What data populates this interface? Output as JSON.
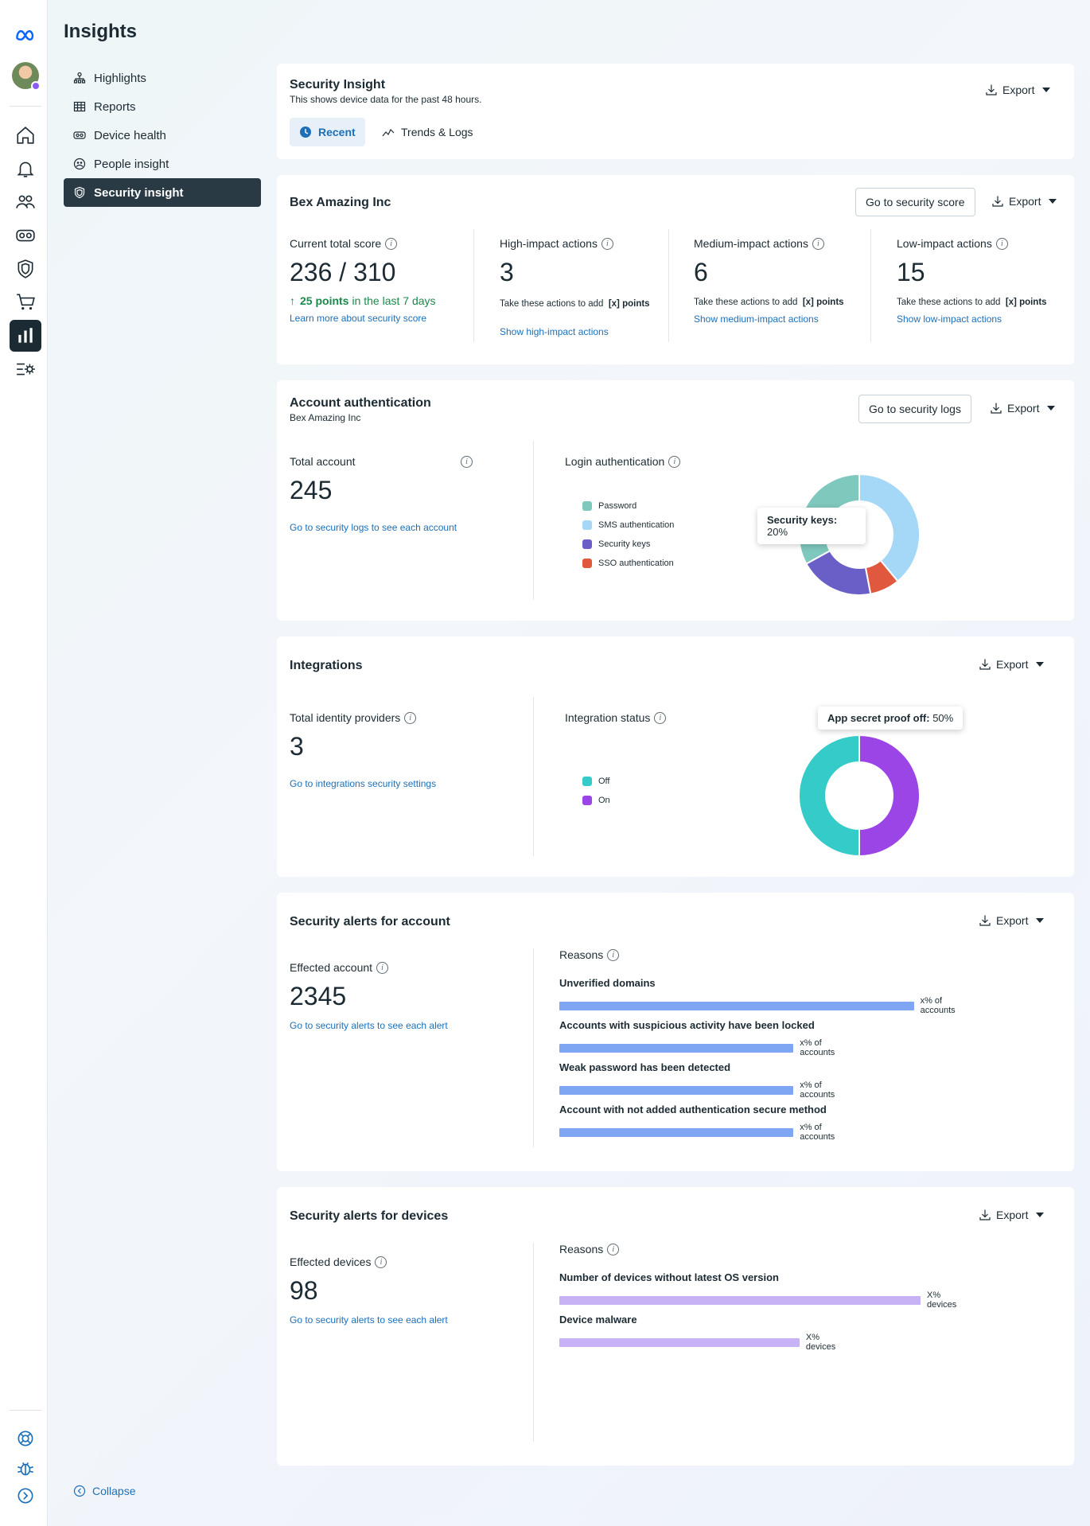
{
  "nav": {
    "title": "Insights",
    "items": [
      {
        "label": "Highlights",
        "icon": "sitemap-icon"
      },
      {
        "label": "Reports",
        "icon": "table-icon"
      },
      {
        "label": "Device health",
        "icon": "vr-headset-icon"
      },
      {
        "label": "People insight",
        "icon": "people-icon"
      },
      {
        "label": "Security insight",
        "icon": "shield-icon"
      }
    ],
    "collapse_label": "Collapse"
  },
  "header_card": {
    "title": "Security Insight",
    "subtitle": "This shows device data for the past 48 hours.",
    "export_label": "Export",
    "tabs": [
      {
        "label": "Recent",
        "icon": "clock-icon"
      },
      {
        "label": "Trends & Logs",
        "icon": "trend-icon"
      }
    ]
  },
  "score_card": {
    "title": "Bex Amazing Inc",
    "goto_label": "Go to security score",
    "export_label": "Export",
    "current": {
      "label": "Current total score",
      "value": "236 / 310",
      "delta_bold": "25 points",
      "delta_rest": "in the last 7 days",
      "link": "Learn more about security score"
    },
    "high": {
      "label": "High-impact actions",
      "value": "3",
      "desc_a": "Take these actions to add",
      "desc_b": "[x]",
      "desc_c": "points",
      "link": "Show high-impact actions"
    },
    "medium": {
      "label": "Medium-impact actions",
      "value": "6",
      "desc_a": "Take these actions to add",
      "desc_b": "[x] points",
      "link": "Show medium-impact actions"
    },
    "low": {
      "label": "Low-impact actions",
      "value": "15",
      "desc_a": "Take these actions to add",
      "desc_b": "[x] points",
      "link": "Show low-impact actions"
    }
  },
  "auth_card": {
    "title": "Account authentication",
    "subtitle": "Bex Amazing Inc",
    "goto_label": "Go to security logs",
    "export_label": "Export",
    "total_label": "Total account",
    "total_value": "245",
    "total_link": "Go to security logs to see each account",
    "login_label": "Login authentication",
    "legend": [
      {
        "label": "Password",
        "color": "#7ec8bd"
      },
      {
        "label": "SMS authentication",
        "color": "#a5d8f7"
      },
      {
        "label": "Security keys",
        "color": "#6a5fc7"
      },
      {
        "label": "SSO authentication",
        "color": "#e0593f"
      }
    ],
    "tooltip_label": "Security keys",
    "tooltip_value": "20%"
  },
  "integrations_card": {
    "title": "Integrations",
    "export_label": "Export",
    "total_label": "Total identity providers",
    "total_value": "3",
    "total_link": "Go to integrations security settings",
    "status_label": "Integration status",
    "legend": [
      {
        "label": "Off",
        "color": "#34cbc9"
      },
      {
        "label": "On",
        "color": "#9b45e6"
      }
    ],
    "tooltip_label": "App secret proof off",
    "tooltip_value": "50%"
  },
  "account_alerts_card": {
    "title": "Security alerts for account",
    "export_label": "Export",
    "affected_label": "Effected account",
    "affected_value": "2345",
    "affected_link": "Go to security alerts to see each alert",
    "reasons_label": "Reasons",
    "bar_color": "#7ea6f3",
    "reasons": [
      {
        "label": "Unverified domains",
        "value_text": "x% of accounts",
        "fraction": 1.0
      },
      {
        "label": "Accounts with suspicious activity have been locked",
        "value_text": "x% of accounts",
        "fraction": 0.675
      },
      {
        "label": "Weak password has been detected",
        "value_text": "x% of accounts",
        "fraction": 0.675
      },
      {
        "label": "Account with not added authentication secure method",
        "value_text": "x% of accounts",
        "fraction": 0.675
      }
    ]
  },
  "device_alerts_card": {
    "title": "Security alerts for devices",
    "export_label": "Export",
    "affected_label": "Effected devices",
    "affected_value": "98",
    "affected_link": "Go to security alerts to see each alert",
    "reasons_label": "Reasons",
    "bar_color": "#c7b2f5",
    "reasons": [
      {
        "label": "Number of devices without latest OS version",
        "value_text": "X% devices",
        "fraction": 1.0
      },
      {
        "label": "Device malware",
        "value_text": "X% devices",
        "fraction": 0.675
      }
    ]
  },
  "auth_chart_data": {
    "type": "pie",
    "title": "",
    "categories": [
      "SMS authentication",
      "SSO authentication",
      "Security keys",
      "Password"
    ],
    "values": [
      39,
      8,
      20,
      33
    ]
  },
  "integration_chart_data": {
    "type": "pie",
    "title": "",
    "categories": [
      "On",
      "Off"
    ],
    "values": [
      50,
      50
    ]
  }
}
